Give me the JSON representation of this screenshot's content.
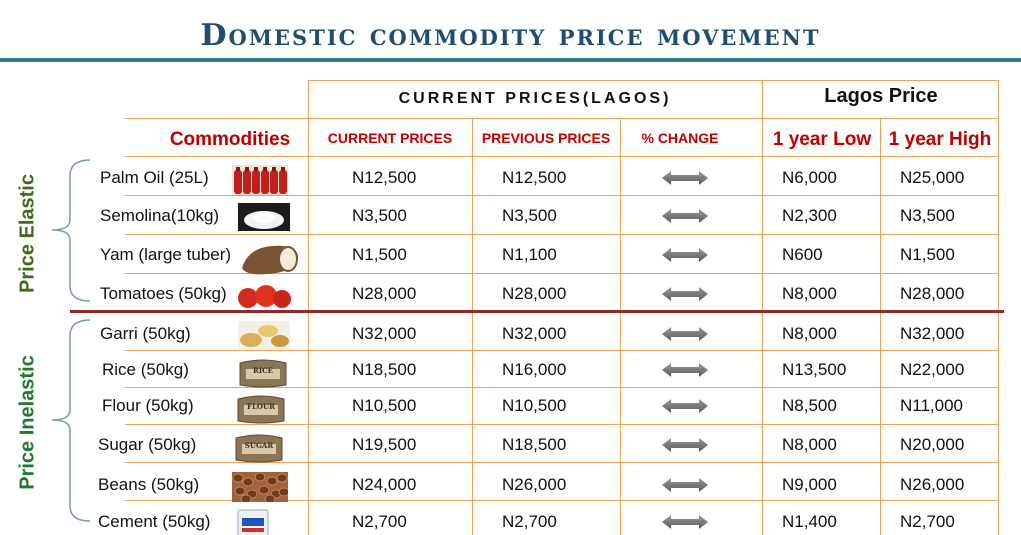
{
  "title": "Domestic commodity price movement",
  "headers": {
    "group_current": "CURRENT PRICES(LAGOS)",
    "group_lagos": "Lagos Price",
    "commodities": "Commodities",
    "current": "CURRENT PRICES",
    "previous": "PREVIOUS PRICES",
    "change": "% CHANGE",
    "low": "1 year Low",
    "high": "1 year High"
  },
  "groups": {
    "elastic": "Price Elastic",
    "inelastic": "Price Inelastic"
  },
  "colors": {
    "title": "#1d4d73",
    "rule": "#2f7d83",
    "header_red": "#c00000",
    "grid": "#e8a25c",
    "elastic_green": "#3e6b16",
    "inelastic_green": "#1f7a30",
    "divider": "#8b2c2c"
  },
  "rows": [
    {
      "name": "Palm Oil (25L)",
      "current": "N12,500",
      "previous": "N12,500",
      "low": "N6,000",
      "high": "N25,000",
      "icon": "palm-oil-icon"
    },
    {
      "name": "Semolina(10kg)",
      "current": "N3,500",
      "previous": "N3,500",
      "low": "N2,300",
      "high": "N3,500",
      "icon": "semolina-icon"
    },
    {
      "name": "Yam (large tuber)",
      "current": "N1,500",
      "previous": "N1,100",
      "low": "N600",
      "high": "N1,500",
      "icon": "yam-icon"
    },
    {
      "name": "Tomatoes (50kg)",
      "current": "N28,000",
      "previous": "N28,000",
      "low": "N8,000",
      "high": "N28,000",
      "icon": "tomato-icon"
    },
    {
      "name": "Garri (50kg)",
      "current": "N32,000",
      "previous": "N32,000",
      "low": "N8,000",
      "high": "N32,000",
      "icon": "garri-icon"
    },
    {
      "name": "Rice (50kg)",
      "current": "N18,500",
      "previous": "N16,000",
      "low": "N13,500",
      "high": "N22,000",
      "icon": "rice-bag-icon",
      "bag_label": "RICE"
    },
    {
      "name": "Flour (50kg)",
      "current": "N10,500",
      "previous": "N10,500",
      "low": "N8,500",
      "high": "N11,000",
      "icon": "flour-bag-icon",
      "bag_label": "FLOUR"
    },
    {
      "name": "Sugar (50kg)",
      "current": "N19,500",
      "previous": "N18,500",
      "low": "N8,000",
      "high": "N20,000",
      "icon": "sugar-bag-icon",
      "bag_label": "SUGAR"
    },
    {
      "name": "Beans (50kg)",
      "current": "N24,000",
      "previous": "N26,000",
      "low": "N9,000",
      "high": "N26,000",
      "icon": "beans-icon"
    },
    {
      "name": "Cement (50kg)",
      "current": "N2,700",
      "previous": "N2,700",
      "low": "N1,400",
      "high": "N2,700",
      "icon": "cement-bag-icon"
    }
  ]
}
